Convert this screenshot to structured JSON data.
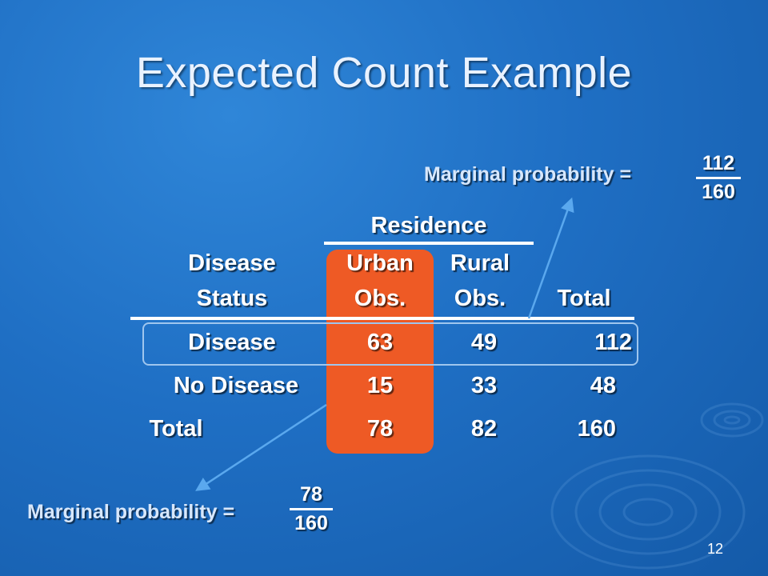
{
  "title": "Expected Count Example",
  "table": {
    "group_header": "Residence",
    "headers": {
      "row_label": [
        "Disease",
        "Status"
      ],
      "urban": [
        "Urban",
        "Obs."
      ],
      "rural": [
        "Rural",
        "Obs."
      ],
      "total": "Total"
    },
    "rows": [
      {
        "label": "Disease",
        "urban": "63",
        "rural": "49",
        "total": "112"
      },
      {
        "label": "No Disease",
        "urban": "15",
        "rural": "33",
        "total": "48"
      },
      {
        "label": "Total",
        "urban": "78",
        "rural": "82",
        "total": "160"
      }
    ]
  },
  "marginal_top": {
    "label": "Marginal probability =",
    "numerator": "112",
    "denominator": "160"
  },
  "marginal_bottom": {
    "label": "Marginal probability =",
    "numerator": "78",
    "denominator": "160"
  },
  "slide_number": "12",
  "colors": {
    "highlight": "#ee5a25",
    "background": "#1f6fc4",
    "arrow": "#5aa8ee"
  }
}
